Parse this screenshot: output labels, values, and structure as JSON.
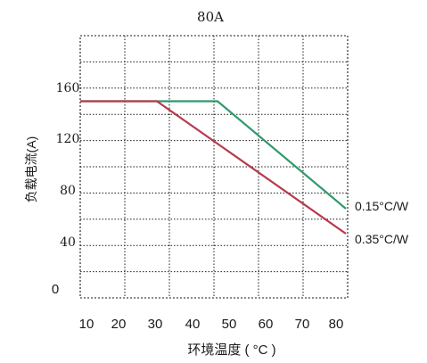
{
  "chart_data": {
    "type": "line",
    "title": "80A",
    "xlabel": "环境温度 ( °C )",
    "ylabel": "负载电流(A)",
    "x_ticks": [
      "10",
      "20",
      "30",
      "40",
      "50",
      "60",
      "70",
      "80"
    ],
    "y_ticks": [
      "0",
      "40",
      "80",
      "120",
      "160"
    ],
    "xlim": [
      8,
      83
    ],
    "ylim": [
      0,
      200
    ],
    "grid": true,
    "series": [
      {
        "name": "0.15°C/W",
        "color": "#2e9a6a",
        "points": [
          [
            8,
            150
          ],
          [
            46.5,
            150
          ],
          [
            82.5,
            68
          ]
        ]
      },
      {
        "name": "0.35°C/W",
        "color": "#b83a4f",
        "points": [
          [
            8,
            150
          ],
          [
            29.5,
            150
          ],
          [
            82.5,
            49
          ]
        ]
      }
    ]
  }
}
